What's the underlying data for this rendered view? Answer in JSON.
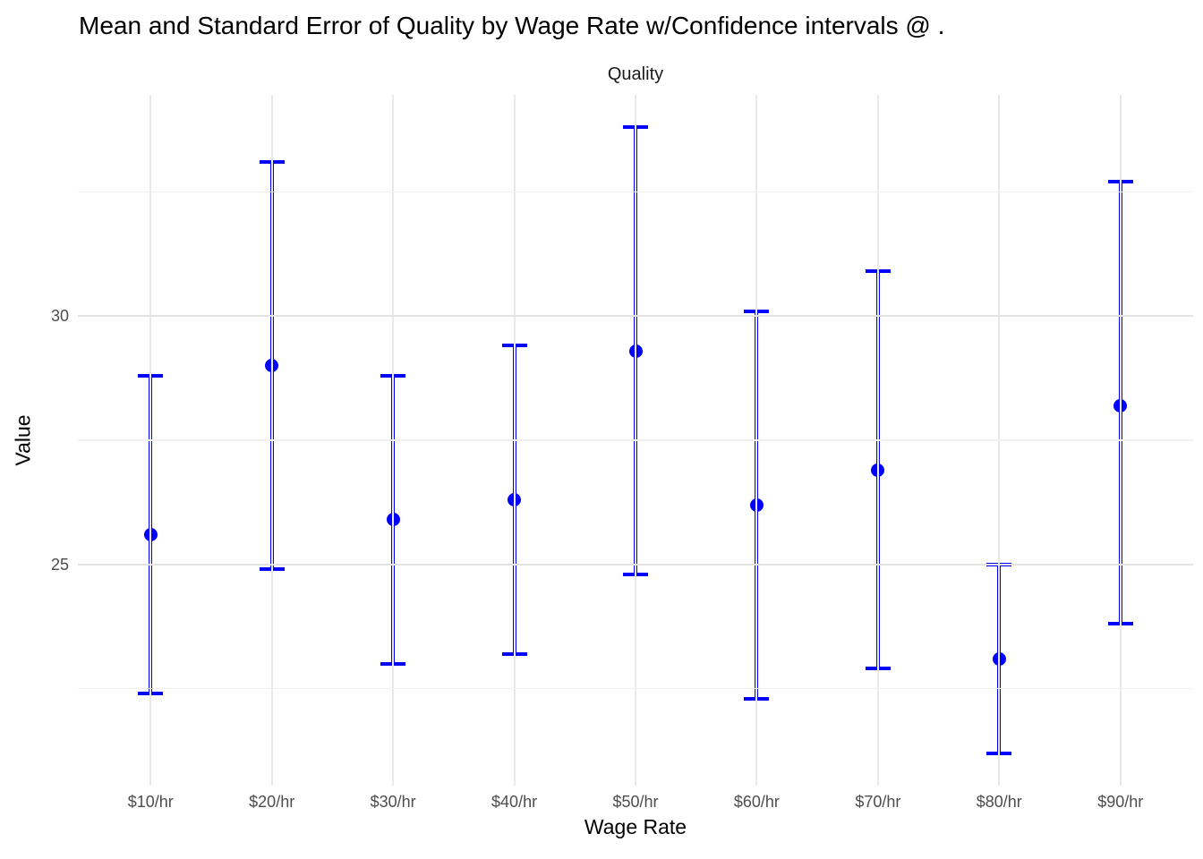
{
  "colors": {
    "series_blue": "#0000ff",
    "grid_major": "#e3e3e3",
    "grid_minor": "#f0f0f0",
    "grid_vertical": "#e9e9e9",
    "tick_text": "#4d4d4d",
    "text": "#000000",
    "background": "#ffffff"
  },
  "chart_data": {
    "type": "errorbar",
    "title": "Mean and Standard Error of Quality by Wage Rate w/Confidence intervals @ .",
    "facet_label": "Quality",
    "xlabel": "Wage Rate",
    "ylabel": "Value",
    "categories": [
      "$10/hr",
      "$20/hr",
      "$30/hr",
      "$40/hr",
      "$50/hr",
      "$60/hr",
      "$70/hr",
      "$80/hr",
      "$90/hr"
    ],
    "series": [
      {
        "name": "Quality",
        "means": [
          25.6,
          29.0,
          25.9,
          26.3,
          29.3,
          26.2,
          26.9,
          23.1,
          28.2
        ],
        "ci_lower": [
          22.4,
          24.9,
          23.0,
          23.2,
          24.8,
          22.3,
          22.9,
          21.2,
          23.8
        ],
        "ci_upper": [
          28.8,
          33.1,
          28.8,
          29.4,
          33.8,
          30.1,
          30.9,
          25.0,
          32.7
        ]
      }
    ],
    "yticks_major": [
      25,
      30
    ],
    "yticks_minor": [
      22.5,
      27.5,
      32.5
    ],
    "ylim": [
      20.55,
      34.45
    ],
    "grid": true,
    "legend": false
  }
}
